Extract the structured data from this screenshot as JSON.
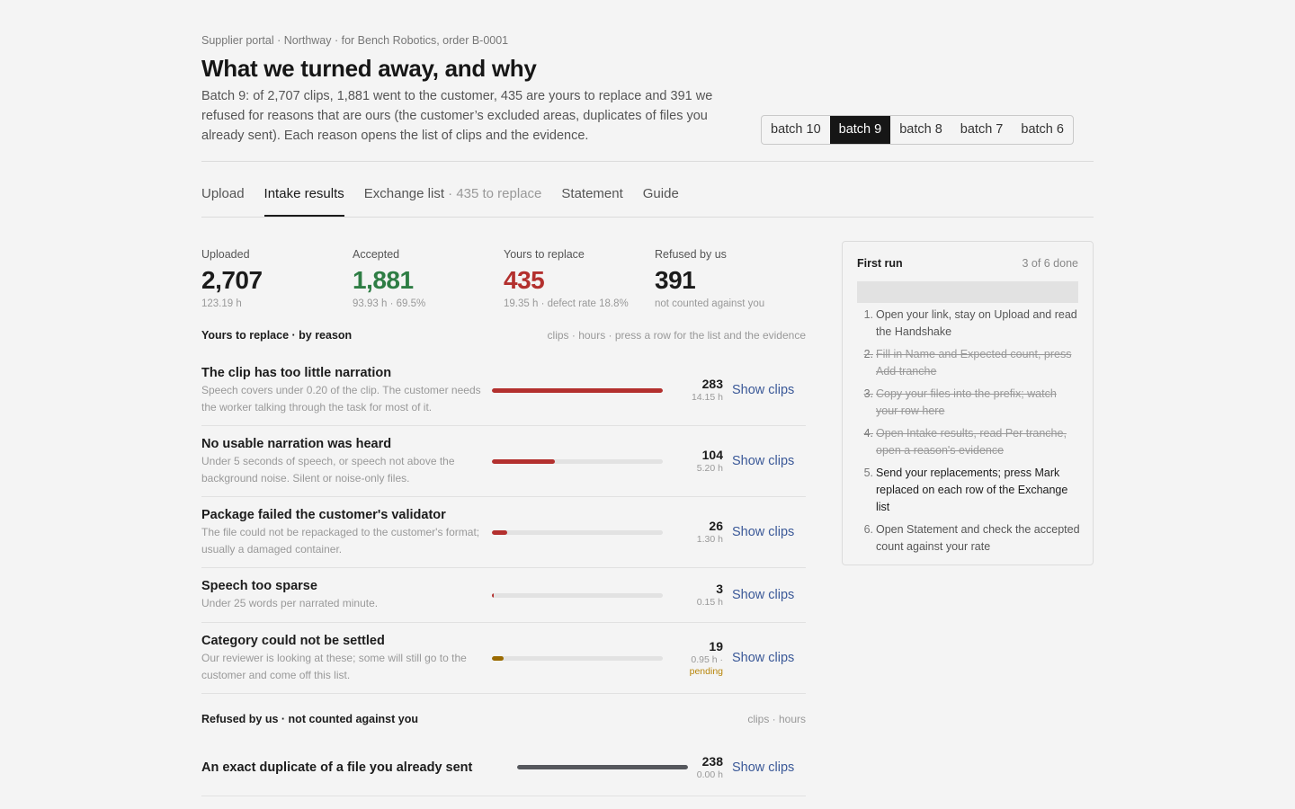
{
  "header": {
    "breadcrumb": "Supplier portal · Northway · for Bench Robotics, order B-0001",
    "title": "What we turned away, and why",
    "lede": "Batch 9: of 2,707 clips, 1,881 went to the customer, 435 are yours to replace and 391 we refused for reasons that are ours (the customer’s excluded areas, duplicates of files you already sent). Each reason opens the list of clips and the evidence."
  },
  "batches": [
    {
      "label": "batch 10",
      "active": false
    },
    {
      "label": "batch 9",
      "active": true
    },
    {
      "label": "batch 8",
      "active": false
    },
    {
      "label": "batch 7",
      "active": false
    },
    {
      "label": "batch 6",
      "active": false
    }
  ],
  "tabs": [
    {
      "label": "Upload",
      "suffix": "",
      "active": false
    },
    {
      "label": "Intake results",
      "suffix": "",
      "active": true
    },
    {
      "label": "Exchange list",
      "suffix": " · 435 to replace",
      "active": false
    },
    {
      "label": "Statement",
      "suffix": "",
      "active": false
    },
    {
      "label": "Guide",
      "suffix": "",
      "active": false
    }
  ],
  "stats": [
    {
      "label": "Uploaded",
      "value": "2,707",
      "sub": "123.19 h",
      "tone": "normal"
    },
    {
      "label": "Accepted",
      "value": "1,881",
      "sub": "93.93 h · 69.5%",
      "tone": "green"
    },
    {
      "label": "Yours to replace",
      "value": "435",
      "sub": "19.35 h · defect rate 18.8%",
      "tone": "red"
    },
    {
      "label": "Refused by us",
      "value": "391",
      "sub": "not counted against you",
      "tone": "normal"
    }
  ],
  "replace_section": {
    "title": "Yours to replace · by reason",
    "hint": "clips · hours · press a row for the list and the evidence"
  },
  "reasons": [
    {
      "name": "The clip has too little narration",
      "desc": "Speech covers under 0.20 of the clip. The customer needs the worker talking through the task for most of it.",
      "count": "283",
      "hours": "14.15 h",
      "pending": "",
      "fraction": 1.0,
      "color": "#b3302e",
      "action": "Show clips"
    },
    {
      "name": "No usable narration was heard",
      "desc": "Under 5 seconds of speech, or speech not above the background noise. Silent or noise-only files.",
      "count": "104",
      "hours": "5.20 h",
      "pending": "",
      "fraction": 0.37,
      "color": "#b3302e",
      "action": "Show clips"
    },
    {
      "name": "Package failed the customer's validator",
      "desc": "The file could not be repackaged to the customer's format; usually a damaged container.",
      "count": "26",
      "hours": "1.30 h",
      "pending": "",
      "fraction": 0.092,
      "color": "#b3302e",
      "action": "Show clips"
    },
    {
      "name": "Speech too sparse",
      "desc": "Under 25 words per narrated minute.",
      "count": "3",
      "hours": "0.15 h",
      "pending": "",
      "fraction": 0.011,
      "color": "#b3302e",
      "action": "Show clips"
    },
    {
      "name": "Category could not be settled",
      "desc": "Our reviewer is looking at these; some will still go to the customer and come off this list.",
      "count": "19",
      "hours": "0.95 h ·",
      "pending": "pending",
      "fraction": 0.067,
      "color": "#9a6a00",
      "action": "Show clips"
    }
  ],
  "refused_section": {
    "title": "Refused by us · not counted against you",
    "hint": "clips · hours"
  },
  "refused": [
    {
      "name": "An exact duplicate of a file you already sent",
      "count": "238",
      "hours": "0.00 h",
      "fraction": 1.0,
      "color": "#55575c",
      "action": "Show clips"
    }
  ],
  "first_run": {
    "title": "First run",
    "count": "3 of 6 done",
    "progress": 0.5,
    "steps": [
      {
        "num": "1.",
        "text": "Open your link, stay on Upload and read the Handshake",
        "state": "todo"
      },
      {
        "num": "2.",
        "text": "Fill in Name and Expected count, press Add tranche",
        "state": "done"
      },
      {
        "num": "3.",
        "text": "Copy your files into the prefix; watch your row here",
        "state": "done"
      },
      {
        "num": "4.",
        "text": "Open Intake results, read Per tranche, open a reason's evidence",
        "state": "done"
      },
      {
        "num": "5.",
        "text": "Send your replacements; press Mark replaced on each row of the Exchange list",
        "state": "current"
      },
      {
        "num": "6.",
        "text": "Open Statement and check the accepted count against your rate",
        "state": "todo"
      }
    ]
  }
}
